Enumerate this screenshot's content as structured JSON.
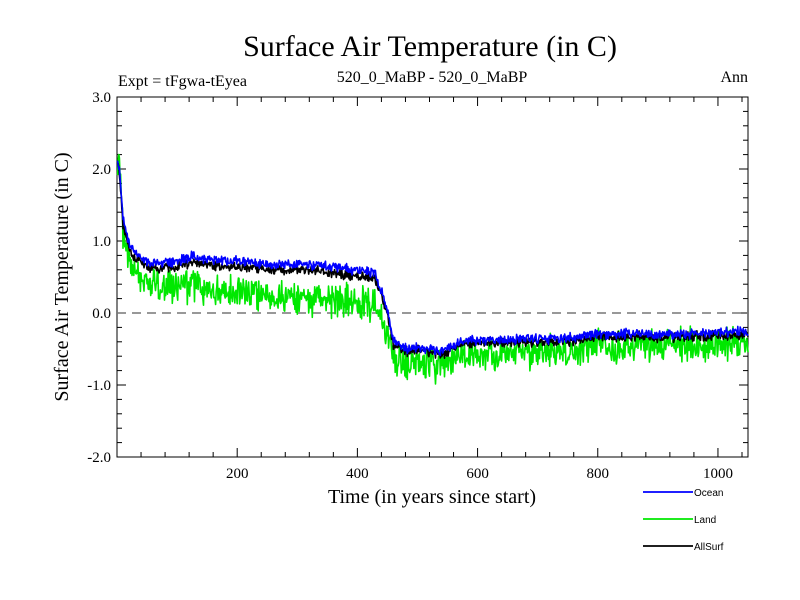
{
  "chart_data": {
    "type": "line",
    "title": "Surface Air Temperature (in C)",
    "subtitle_left": "Expt = tFgwa-tEyea",
    "subtitle_center": "520_0_MaBP - 520_0_MaBP",
    "subtitle_right": "Ann",
    "xlabel": "Time (in years since start)",
    "ylabel": "Surface Air Temperature (in C)",
    "xlim": [
      0,
      1050
    ],
    "ylim": [
      -2.0,
      3.0
    ],
    "xticks": [
      200,
      400,
      600,
      800,
      1000
    ],
    "xtick_labels": [
      "200",
      "400",
      "600",
      "800",
      "1000"
    ],
    "yticks": [
      -2.0,
      -1.0,
      0.0,
      1.0,
      2.0,
      3.0
    ],
    "ytick_labels": [
      "-2.0",
      "-1.0",
      "0.0",
      "1.0",
      "2.0",
      "3.0"
    ],
    "zero_line": 0.0,
    "legend_position": "bottom-right, outside plot",
    "series": [
      {
        "name": "Ocean",
        "color": "#0000ff",
        "x": [
          0,
          5,
          10,
          20,
          30,
          50,
          80,
          100,
          120,
          150,
          200,
          250,
          300,
          350,
          400,
          430,
          440,
          450,
          460,
          480,
          500,
          520,
          540,
          560,
          580,
          600,
          650,
          700,
          750,
          800,
          850,
          900,
          950,
          1000,
          1050
        ],
        "values": [
          2.2,
          1.9,
          1.3,
          0.95,
          0.85,
          0.7,
          0.7,
          0.72,
          0.78,
          0.75,
          0.72,
          0.68,
          0.68,
          0.65,
          0.6,
          0.55,
          0.3,
          0.0,
          -0.4,
          -0.5,
          -0.48,
          -0.5,
          -0.55,
          -0.45,
          -0.38,
          -0.38,
          -0.37,
          -0.36,
          -0.35,
          -0.3,
          -0.28,
          -0.3,
          -0.28,
          -0.27,
          -0.25
        ],
        "noise": 0.06
      },
      {
        "name": "Land",
        "color": "#00e800",
        "x": [
          0,
          5,
          10,
          20,
          30,
          50,
          80,
          100,
          120,
          150,
          200,
          250,
          300,
          350,
          400,
          430,
          440,
          450,
          460,
          480,
          500,
          520,
          540,
          560,
          580,
          600,
          650,
          700,
          750,
          800,
          850,
          900,
          950,
          1000,
          1050
        ],
        "values": [
          2.0,
          2.1,
          1.1,
          0.7,
          0.55,
          0.4,
          0.35,
          0.35,
          0.4,
          0.35,
          0.3,
          0.25,
          0.2,
          0.2,
          0.15,
          0.1,
          -0.1,
          -0.3,
          -0.6,
          -0.7,
          -0.7,
          -0.7,
          -0.75,
          -0.65,
          -0.6,
          -0.58,
          -0.58,
          -0.55,
          -0.55,
          -0.45,
          -0.45,
          -0.45,
          -0.42,
          -0.42,
          -0.4
        ],
        "noise": 0.2
      },
      {
        "name": "AllSurf",
        "color": "#000000",
        "x": [
          0,
          5,
          10,
          20,
          30,
          50,
          80,
          100,
          120,
          150,
          200,
          250,
          300,
          350,
          400,
          430,
          440,
          450,
          460,
          480,
          500,
          520,
          540,
          560,
          580,
          600,
          650,
          700,
          750,
          800,
          850,
          900,
          950,
          1000,
          1050
        ],
        "values": [
          2.15,
          1.85,
          1.25,
          0.88,
          0.78,
          0.63,
          0.62,
          0.64,
          0.7,
          0.67,
          0.64,
          0.6,
          0.6,
          0.57,
          0.52,
          0.47,
          0.24,
          -0.05,
          -0.44,
          -0.54,
          -0.52,
          -0.54,
          -0.59,
          -0.49,
          -0.42,
          -0.42,
          -0.41,
          -0.4,
          -0.39,
          -0.34,
          -0.32,
          -0.34,
          -0.32,
          -0.31,
          -0.29
        ],
        "noise": 0.06
      }
    ]
  },
  "legend": {
    "entries": [
      "Ocean",
      "Land",
      "AllSurf"
    ]
  }
}
